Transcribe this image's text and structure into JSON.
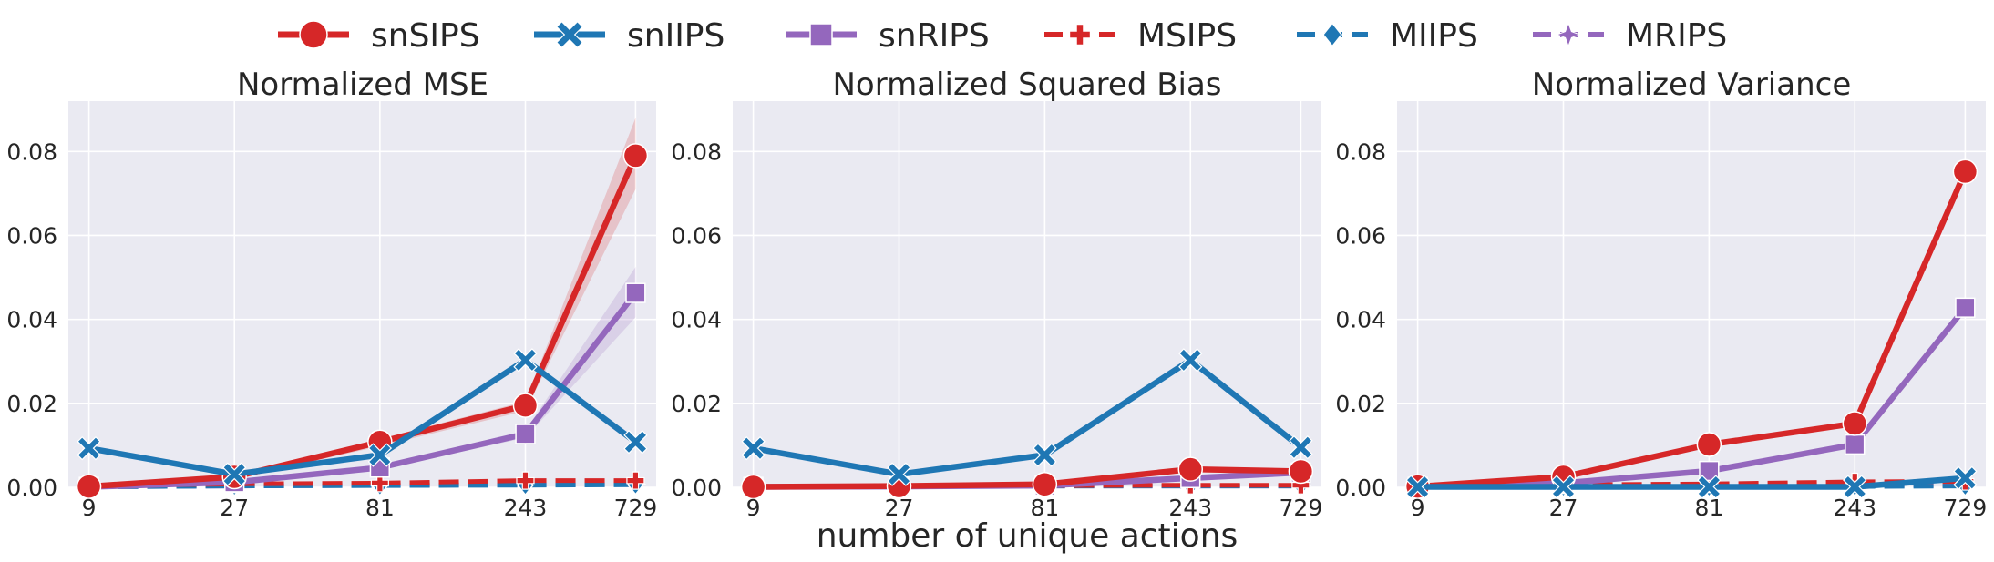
{
  "figure": {
    "xlabel": "number of unique actions",
    "legend": [
      {
        "key": "snSIPS",
        "label": "snSIPS",
        "color": "#d62728",
        "marker": "circle",
        "dash": "solid"
      },
      {
        "key": "snIIPS",
        "label": "snIIPS",
        "color": "#1f77b4",
        "marker": "x",
        "dash": "solid"
      },
      {
        "key": "snRIPS",
        "label": "snRIPS",
        "color": "#9467bd",
        "marker": "square",
        "dash": "solid"
      },
      {
        "key": "MSIPS",
        "label": "MSIPS",
        "color": "#d62728",
        "marker": "plus",
        "dash": "dashed"
      },
      {
        "key": "MIIPS",
        "label": "MIIPS",
        "color": "#1f77b4",
        "marker": "diamond",
        "dash": "dashed"
      },
      {
        "key": "MRIPS",
        "label": "MRIPS",
        "color": "#9467bd",
        "marker": "star",
        "dash": "dashed"
      }
    ]
  },
  "chart_data": [
    {
      "type": "line",
      "title": "Normalized MSE",
      "x": [
        9,
        27,
        81,
        243,
        729
      ],
      "xticks": [
        "9",
        "27",
        "81",
        "243",
        "729"
      ],
      "ylim": [
        0,
        0.092
      ],
      "yticks": [
        "0.00",
        "0.02",
        "0.04",
        "0.06",
        "0.08"
      ],
      "grid": true,
      "series": [
        {
          "name": "snSIPS",
          "values": [
            0.0002,
            0.0025,
            0.0108,
            0.0195,
            0.079
          ],
          "band": [
            0.0002,
            0.003,
            0.0115,
            0.0205,
            0.088
          ],
          "band_low": [
            0.0001,
            0.002,
            0.0098,
            0.0182,
            0.071
          ]
        },
        {
          "name": "snIIPS",
          "values": [
            0.0093,
            0.0031,
            0.0077,
            0.0303,
            0.0108
          ]
        },
        {
          "name": "snRIPS",
          "values": [
            0.0001,
            0.0012,
            0.0047,
            0.0127,
            0.0463
          ],
          "band": [
            0.0001,
            0.0014,
            0.0052,
            0.0135,
            0.0525
          ],
          "band_low": [
            0.0001,
            0.001,
            0.0042,
            0.0118,
            0.0405
          ]
        },
        {
          "name": "MSIPS",
          "values": [
            0.0003,
            0.0008,
            0.001,
            0.0016,
            0.0016
          ]
        },
        {
          "name": "MIIPS",
          "values": [
            0.0001,
            0.0003,
            0.0004,
            0.0005,
            0.0006
          ]
        },
        {
          "name": "MRIPS",
          "values": [
            0.0001,
            0.0003,
            0.0005,
            0.0006,
            0.0007
          ]
        }
      ]
    },
    {
      "type": "line",
      "title": "Normalized Squared Bias",
      "x": [
        9,
        27,
        81,
        243,
        729
      ],
      "xticks": [
        "9",
        "27",
        "81",
        "243",
        "729"
      ],
      "ylim": [
        0,
        0.092
      ],
      "yticks": [
        "0.00",
        "0.02",
        "0.04",
        "0.06",
        "0.08"
      ],
      "grid": true,
      "series": [
        {
          "name": "snSIPS",
          "values": [
            0.0001,
            0.0003,
            0.0007,
            0.0043,
            0.0038
          ]
        },
        {
          "name": "snIIPS",
          "values": [
            0.0093,
            0.0031,
            0.0077,
            0.0303,
            0.0095
          ]
        },
        {
          "name": "snRIPS",
          "values": [
            0.0001,
            0.0002,
            0.0004,
            0.0022,
            0.0035
          ]
        },
        {
          "name": "MSIPS",
          "values": [
            0.0001,
            0.0002,
            0.0004,
            0.0005,
            0.0005
          ]
        },
        {
          "name": "MIIPS",
          "values": [
            0.0001,
            0.0002,
            0.0003,
            0.0003,
            0.0003
          ]
        },
        {
          "name": "MRIPS",
          "values": [
            0.0001,
            0.0002,
            0.0003,
            0.0003,
            0.0003
          ]
        }
      ]
    },
    {
      "type": "line",
      "title": "Normalized Variance",
      "x": [
        9,
        27,
        81,
        243,
        729
      ],
      "xticks": [
        "9",
        "27",
        "81",
        "243",
        "729"
      ],
      "ylim": [
        0,
        0.092
      ],
      "yticks": [
        "0.00",
        "0.02",
        "0.04",
        "0.06",
        "0.08"
      ],
      "grid": true,
      "series": [
        {
          "name": "snSIPS",
          "values": [
            0.0002,
            0.0025,
            0.0102,
            0.0152,
            0.0752
          ]
        },
        {
          "name": "snIIPS",
          "values": [
            0.0001,
            0.0001,
            0.0001,
            0.0001,
            0.0022
          ]
        },
        {
          "name": "snRIPS",
          "values": [
            0.0001,
            0.001,
            0.0039,
            0.0102,
            0.0428
          ]
        },
        {
          "name": "MSIPS",
          "values": [
            0.0002,
            0.0006,
            0.0008,
            0.0013,
            0.0014
          ]
        },
        {
          "name": "MIIPS",
          "values": [
            0.0001,
            0.0001,
            0.0001,
            0.0002,
            0.0003
          ]
        },
        {
          "name": "MRIPS",
          "values": [
            0.0001,
            0.0002,
            0.0003,
            0.0004,
            0.0005
          ]
        }
      ]
    }
  ]
}
